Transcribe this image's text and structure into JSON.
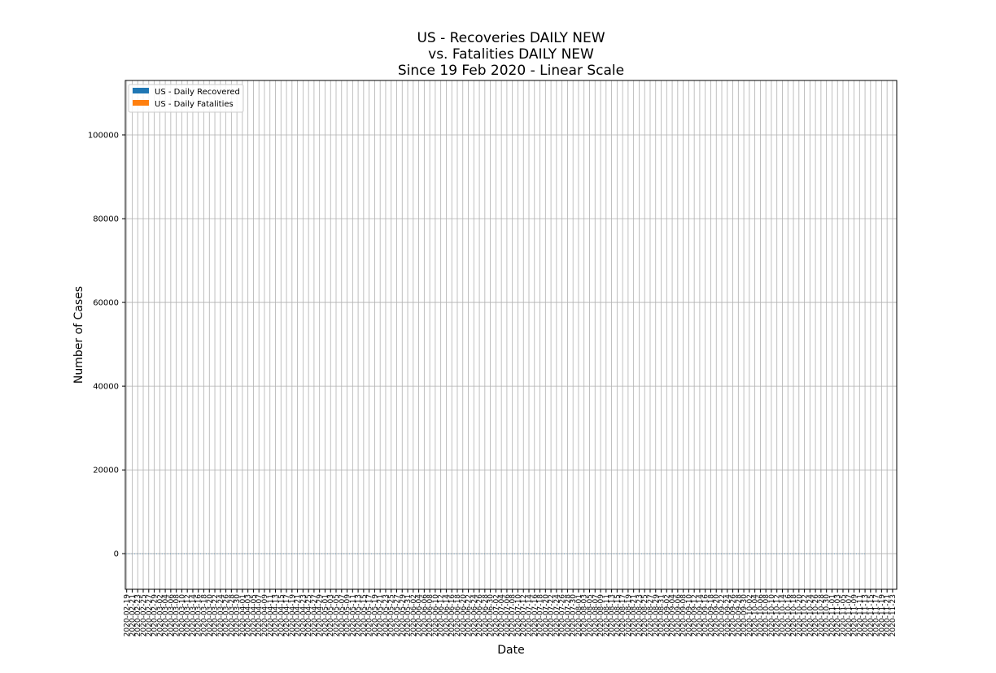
{
  "chart_data": {
    "type": "bar",
    "title_lines": [
      "US - Recoveries DAILY NEW",
      "vs. Fatalities DAILY NEW",
      "Since 19 Feb 2020 - Linear Scale"
    ],
    "xlabel": "Date",
    "ylabel": "Number of Cases",
    "ylim": [
      -8500,
      113000
    ],
    "yticks": [
      0,
      20000,
      40000,
      60000,
      80000,
      100000
    ],
    "ytick_labels": [
      "0",
      "20000",
      "40000",
      "60000",
      "80000",
      "100000"
    ],
    "grid": true,
    "legend_position": "top-left",
    "x_start_date": "2020-02-19",
    "x_end_date": "2020-11-24",
    "x_tick_every": 2,
    "series": [
      {
        "name": "US - Daily Recovered",
        "color": "#1f77b4",
        "values": [
          0,
          0,
          0,
          0,
          0,
          0,
          0,
          0,
          0,
          0,
          0,
          0,
          0,
          0,
          0,
          0,
          0,
          0,
          0,
          0,
          0,
          0,
          0,
          0,
          0,
          0,
          0,
          0,
          0,
          0,
          0,
          0,
          0,
          0,
          0,
          0,
          0,
          0,
          0,
          0,
          0,
          0,
          0,
          0,
          0,
          0,
          0,
          0,
          0,
          0,
          0,
          0,
          0,
          0,
          0,
          0,
          0,
          0,
          0,
          0,
          0,
          0,
          0,
          0,
          0,
          0,
          0,
          0,
          0,
          0,
          0,
          0,
          0,
          0,
          0,
          0,
          0,
          0,
          0,
          0,
          0,
          0,
          0,
          0,
          0,
          0,
          0,
          0,
          0,
          0,
          0,
          0,
          0,
          0,
          0,
          0,
          0,
          0,
          0,
          0,
          0,
          0,
          0,
          0,
          0,
          0,
          0,
          0,
          0,
          0,
          0,
          0,
          0,
          0,
          0,
          0,
          0,
          0,
          0,
          0,
          0,
          0,
          0,
          0,
          0,
          0,
          0,
          0,
          0,
          0,
          0,
          0,
          0,
          0,
          0,
          0,
          0,
          0,
          0,
          0,
          0,
          0,
          0,
          0,
          0,
          0,
          0,
          0,
          0,
          0,
          0,
          0,
          0,
          0,
          0,
          0,
          0,
          0,
          0,
          0,
          0,
          0,
          0,
          0,
          0,
          0,
          0,
          0,
          0,
          0,
          0,
          0,
          0,
          0,
          0,
          0,
          0,
          0,
          0,
          0,
          0,
          0,
          0,
          0,
          0,
          0,
          0,
          0,
          0,
          0,
          0,
          0,
          0,
          0,
          0,
          0,
          0,
          0,
          0,
          0,
          0,
          0,
          0,
          0,
          0,
          0,
          0,
          0,
          0,
          0,
          0,
          0,
          0,
          0,
          0,
          0,
          0,
          0,
          0,
          0,
          0,
          0,
          0,
          0,
          0,
          0,
          0,
          0,
          0,
          0,
          0,
          0,
          0,
          0,
          0,
          0,
          0,
          0,
          0,
          0,
          0,
          0,
          0,
          0,
          0,
          0,
          0,
          0,
          0,
          0,
          0,
          0,
          0,
          0,
          0,
          0,
          0,
          0,
          0,
          0,
          0,
          0,
          0,
          0,
          0,
          0,
          0,
          0,
          0
        ]
      },
      {
        "name": "US - Daily Fatalities",
        "color": "#ff7f0e",
        "values": []
      }
    ]
  }
}
